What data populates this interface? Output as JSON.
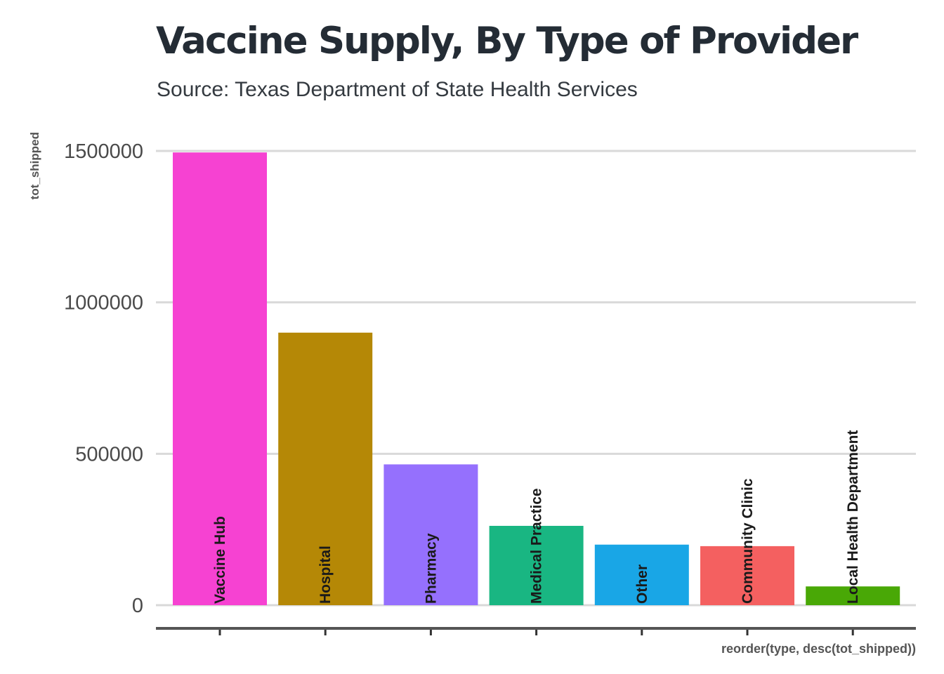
{
  "chart_data": {
    "type": "bar",
    "title": "Vaccine Supply, By Type of Provider",
    "subtitle": "Source: Texas Department of State Health Services",
    "xlabel": "reorder(type, desc(tot_shipped))",
    "ylabel": "tot_shipped",
    "categories": [
      "Vaccine Hub",
      "Hospital",
      "Pharmacy",
      "Medical Practice",
      "Other",
      "Community Clinic",
      "Local Health Department"
    ],
    "values": [
      1495000,
      900000,
      465000,
      262000,
      200000,
      195000,
      62000
    ],
    "colors": [
      "#f642d2",
      "#b58806",
      "#9570fd",
      "#19b682",
      "#19a6e6",
      "#f46060",
      "#49a806"
    ],
    "yticks": [
      0,
      500000,
      1000000,
      1500000
    ],
    "ylim": [
      0,
      1500000
    ],
    "grid": "horizontal",
    "legend": "none"
  }
}
